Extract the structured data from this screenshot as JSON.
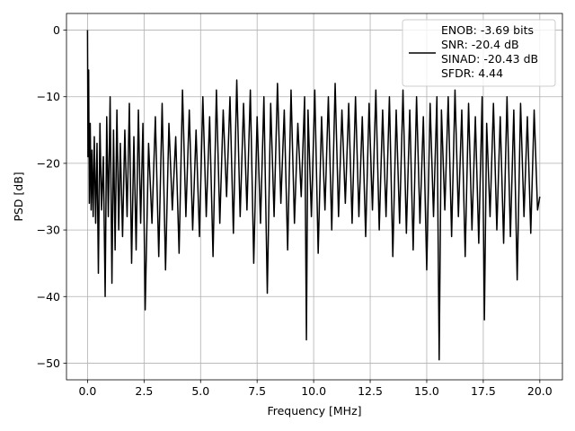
{
  "chart_data": {
    "type": "line",
    "title": "",
    "xlabel": "Frequency [MHz]",
    "ylabel": "PSD [dB]",
    "xlim": [
      -0.93,
      21.0
    ],
    "ylim": [
      -52.5,
      2.5
    ],
    "grid": true,
    "legend_position": "top-right",
    "series_color": "#000000",
    "x_ticks": [
      {
        "value": 0.0,
        "label": "0.0"
      },
      {
        "value": 2.5,
        "label": "2.5"
      },
      {
        "value": 5.0,
        "label": "5.0"
      },
      {
        "value": 7.5,
        "label": "7.5"
      },
      {
        "value": 10.0,
        "label": "10.0"
      },
      {
        "value": 12.5,
        "label": "12.5"
      },
      {
        "value": 15.0,
        "label": "15.0"
      },
      {
        "value": 17.5,
        "label": "17.5"
      },
      {
        "value": 20.0,
        "label": "20.0"
      }
    ],
    "y_ticks": [
      {
        "value": 0,
        "label": "0"
      },
      {
        "value": -10,
        "label": "−10"
      },
      {
        "value": -20,
        "label": "−20"
      },
      {
        "value": -30,
        "label": "−30"
      },
      {
        "value": -40,
        "label": "−40"
      },
      {
        "value": -50,
        "label": "−50"
      }
    ],
    "legend_lines": [
      "ENOB: -3.69 bits",
      "SNR: -20.4 dB",
      "SINAD: -20.43 dB",
      "SFDR: 4.44"
    ],
    "series": [
      {
        "x": [
          0.0,
          0.02,
          0.05,
          0.08,
          0.12,
          0.16,
          0.2,
          0.25,
          0.3,
          0.36,
          0.42,
          0.48,
          0.55,
          0.62,
          0.7,
          0.78,
          0.85,
          0.92,
          1.0,
          1.08,
          1.15,
          1.22,
          1.3,
          1.38,
          1.45,
          1.55,
          1.65,
          1.75,
          1.85,
          1.95,
          2.05,
          2.15,
          2.25,
          2.35,
          2.45,
          2.55,
          2.7,
          2.85,
          3.0,
          3.15,
          3.3,
          3.45,
          3.6,
          3.75,
          3.9,
          4.05,
          4.2,
          4.35,
          4.5,
          4.65,
          4.8,
          4.95,
          5.1,
          5.25,
          5.4,
          5.55,
          5.7,
          5.85,
          6.0,
          6.15,
          6.3,
          6.45,
          6.6,
          6.75,
          6.9,
          7.05,
          7.2,
          7.35,
          7.5,
          7.65,
          7.8,
          7.95,
          8.1,
          8.25,
          8.4,
          8.55,
          8.7,
          8.85,
          9.0,
          9.15,
          9.3,
          9.45,
          9.6,
          9.68,
          9.75,
          9.9,
          10.05,
          10.2,
          10.35,
          10.5,
          10.65,
          10.8,
          10.95,
          11.1,
          11.25,
          11.4,
          11.55,
          11.7,
          11.85,
          12.0,
          12.15,
          12.3,
          12.45,
          12.6,
          12.75,
          12.9,
          13.05,
          13.2,
          13.35,
          13.5,
          13.65,
          13.8,
          13.95,
          14.1,
          14.25,
          14.4,
          14.55,
          14.7,
          14.85,
          15.0,
          15.15,
          15.3,
          15.45,
          15.55,
          15.65,
          15.8,
          15.95,
          16.1,
          16.25,
          16.4,
          16.55,
          16.7,
          16.85,
          17.0,
          17.15,
          17.3,
          17.45,
          17.55,
          17.65,
          17.8,
          17.95,
          18.1,
          18.25,
          18.4,
          18.55,
          18.7,
          18.85,
          19.0,
          19.15,
          19.3,
          19.45,
          19.6,
          19.75,
          19.9,
          20.0
        ],
        "y": [
          0.0,
          -19.0,
          -6.0,
          -26.0,
          -14.0,
          -27.0,
          -18.0,
          -28.0,
          -16.0,
          -29.0,
          -17.0,
          -36.5,
          -14.0,
          -27.0,
          -19.0,
          -40.0,
          -13.0,
          -28.0,
          -10.0,
          -38.0,
          -15.0,
          -33.0,
          -12.0,
          -30.0,
          -17.0,
          -31.0,
          -15.0,
          -28.0,
          -11.0,
          -35.0,
          -16.0,
          -33.0,
          -12.0,
          -29.0,
          -14.0,
          -42.0,
          -17.0,
          -29.0,
          -13.0,
          -34.0,
          -11.0,
          -36.0,
          -14.0,
          -27.0,
          -16.0,
          -33.5,
          -9.0,
          -28.0,
          -12.0,
          -30.0,
          -15.0,
          -31.0,
          -10.0,
          -28.0,
          -13.0,
          -34.0,
          -9.0,
          -29.0,
          -12.0,
          -25.0,
          -10.0,
          -30.5,
          -7.5,
          -28.0,
          -11.0,
          -27.0,
          -9.0,
          -35.0,
          -13.0,
          -29.0,
          -10.0,
          -39.5,
          -11.0,
          -28.0,
          -8.0,
          -26.0,
          -12.0,
          -33.0,
          -9.0,
          -29.0,
          -14.0,
          -25.0,
          -10.0,
          -46.5,
          -12.0,
          -28.0,
          -9.0,
          -33.5,
          -13.0,
          -27.0,
          -10.0,
          -30.0,
          -8.0,
          -28.0,
          -12.0,
          -26.0,
          -11.0,
          -29.0,
          -10.0,
          -28.0,
          -13.0,
          -31.0,
          -11.0,
          -27.0,
          -9.0,
          -30.0,
          -12.0,
          -28.0,
          -10.0,
          -34.0,
          -12.0,
          -29.0,
          -9.0,
          -30.5,
          -12.0,
          -33.0,
          -10.0,
          -29.0,
          -13.0,
          -36.0,
          -11.0,
          -28.0,
          -10.0,
          -49.5,
          -12.0,
          -27.0,
          -10.0,
          -31.0,
          -9.0,
          -28.0,
          -12.0,
          -34.0,
          -11.0,
          -30.0,
          -13.0,
          -32.0,
          -10.0,
          -43.5,
          -14.0,
          -28.0,
          -11.0,
          -30.0,
          -13.0,
          -32.0,
          -10.0,
          -31.0,
          -12.0,
          -37.5,
          -11.0,
          -28.0,
          -13.0,
          -30.5,
          -12.0,
          -27.0,
          -25.0
        ]
      }
    ]
  }
}
